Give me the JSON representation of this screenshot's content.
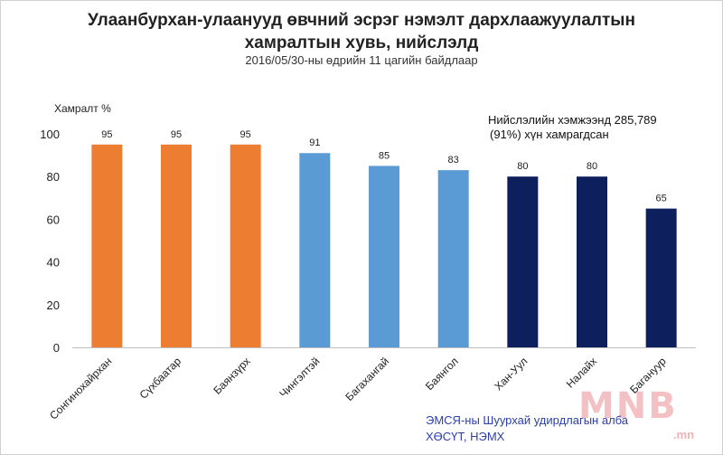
{
  "header": {
    "title_line1": "Улаанбурхан-улаанууд  өвчний эсрэг нэмэлт дархлаажуулалтын",
    "title_line2": "хамралтын хувь, нийслэлд",
    "subtitle": "2016/05/30-ны өдрийн 11 цагийн байдлаар"
  },
  "annotation": {
    "line1": "Нийслэлийн хэмжээнд 285,789",
    "line2": "(91%) хүн хамрагдсан"
  },
  "source": {
    "line1": "ЭМСЯ-ны Шуурхай удирдлагын алба",
    "line2": "ХӨСҮТ, НЭМХ"
  },
  "logo": {
    "text": "MNB",
    "sub": ".mn"
  },
  "colors": {
    "orange": "#ED7D31",
    "light_blue": "#5B9BD5",
    "navy": "#0D1F5C"
  },
  "chart_data": {
    "type": "bar",
    "title": "Улаанбурхан-улаанууд  өвчний эсрэг нэмэлт дархлаажуулалтын хамралтын хувь, нийслэлд",
    "ylabel": "Хамралт %",
    "xlabel": "",
    "ylim": [
      0,
      100
    ],
    "yticks": [
      0,
      20,
      40,
      60,
      80,
      100
    ],
    "grid": false,
    "categories": [
      "Сонгинохайрхан",
      "Сүхбаатар",
      "Баянзүрх",
      "Чингэлтэй",
      "Багахангай",
      "Баянгол",
      "Хан-Уул",
      "Налайх",
      "Багануур"
    ],
    "values": [
      95,
      95,
      95,
      91,
      85,
      83,
      80,
      80,
      65
    ],
    "bar_colors": [
      "#ED7D31",
      "#ED7D31",
      "#ED7D31",
      "#5B9BD5",
      "#5B9BD5",
      "#5B9BD5",
      "#0D1F5C",
      "#0D1F5C",
      "#0D1F5C"
    ]
  }
}
